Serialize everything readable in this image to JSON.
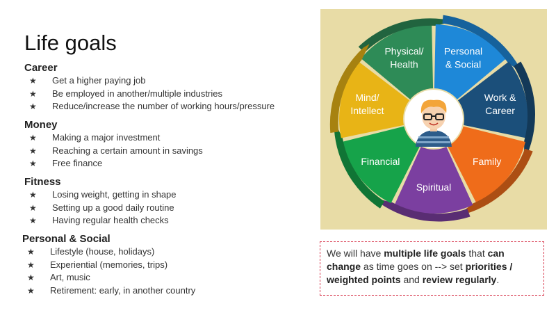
{
  "title": "Life goals",
  "sections": [
    {
      "heading": "Career",
      "items": [
        "Get a higher paying job",
        "Be employed in another/multiple industries",
        "Reduce/increase the number of working hours/pressure"
      ]
    },
    {
      "heading": "Money",
      "items": [
        "Making a major investment",
        "Reaching a certain amount in savings",
        "Free finance"
      ]
    },
    {
      "heading": "Fitness",
      "items": [
        "Losing weight, getting in shape",
        "Setting up a good daily routine",
        "Having regular health checks"
      ]
    },
    {
      "heading": "Personal & Social",
      "items": [
        "Lifestyle (house, holidays)",
        "Experiential (memories, trips)",
        "Art, music",
        "Retirement: early, in another country"
      ]
    }
  ],
  "bullet_symbol": "★",
  "wheel": {
    "segments": [
      {
        "label1": "Physical/",
        "label2": "Health",
        "color": "#2e8b57"
      },
      {
        "label1": "Personal",
        "label2": "& Social",
        "color": "#1e88d8"
      },
      {
        "label1": "Work &",
        "label2": "Career",
        "color": "#1b4f7a"
      },
      {
        "label1": "Family",
        "label2": "",
        "color": "#ef6c1a"
      },
      {
        "label1": "Spiritual",
        "label2": "",
        "color": "#7b3fa0"
      },
      {
        "label1": "Financial",
        "label2": "",
        "color": "#16a34a"
      },
      {
        "label1": "Mind/",
        "label2": "Intellect",
        "color": "#e8b416"
      }
    ],
    "center_icon": "person-avatar-icon"
  },
  "note": {
    "p1": "We will have ",
    "b1": "multiple life goals",
    "p2": " that ",
    "b2": "can change",
    "p3": " as time goes on --> set ",
    "b3": "priorities / weighted points",
    "p4": " and ",
    "b4": "review regularly",
    "p5": "."
  }
}
